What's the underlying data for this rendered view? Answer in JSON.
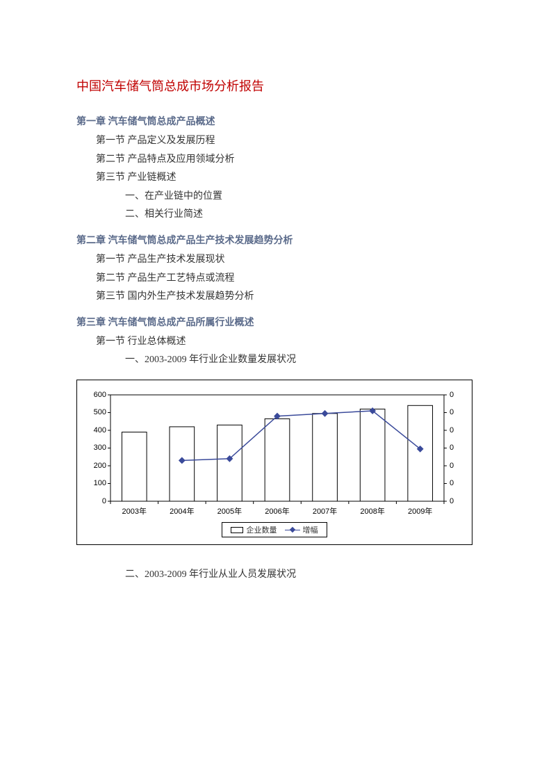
{
  "title": "中国汽车储气筒总成市场分析报告",
  "chapters": [
    {
      "heading": "第一章  汽车储气筒总成产品概述",
      "sections": [
        "第一节  产品定义及发展历程",
        "第二节  产品特点及应用领域分析",
        "第三节  产业链概述"
      ],
      "subsections": [
        "一、在产业链中的位置",
        "二、相关行业简述"
      ]
    },
    {
      "heading": "第二章  汽车储气筒总成产品生产技术发展趋势分析",
      "sections": [
        "第一节  产品生产技术发展现状",
        "第二节  产品生产工艺特点或流程",
        "第三节  国内外生产技术发展趋势分析"
      ]
    },
    {
      "heading": "第三章  汽车储气筒总成产品所属行业概述",
      "sections": [
        "第一节  行业总体概述"
      ],
      "subsections": [
        "一、2003-2009 年行业企业数量发展状况"
      ],
      "post_chart_subsection": "二、2003-2009 年行业从业人员发展状况"
    }
  ],
  "chart": {
    "type": "bar+line",
    "categories": [
      "2003年",
      "2004年",
      "2005年",
      "2006年",
      "2007年",
      "2008年",
      "2009年"
    ],
    "bar_series": {
      "label": "企业数量",
      "values": [
        390,
        420,
        430,
        465,
        495,
        520,
        540
      ],
      "bar_fill": "#ffffff",
      "bar_border": "#000000"
    },
    "line_series": {
      "label": "增幅",
      "values": [
        null,
        230,
        240,
        480,
        495,
        510,
        295
      ],
      "line_color": "#3a4a9a",
      "marker": "diamond",
      "marker_size": 7
    },
    "y_left": {
      "min": 0,
      "max": 600,
      "step": 100
    },
    "y_right": {
      "min": 0,
      "max": 0,
      "tick_count": 7,
      "tick_label": "0"
    },
    "plot_border": "#000000",
    "bar_width_ratio": 0.52,
    "font_size_axis": 11,
    "legend_border": "#000000"
  }
}
